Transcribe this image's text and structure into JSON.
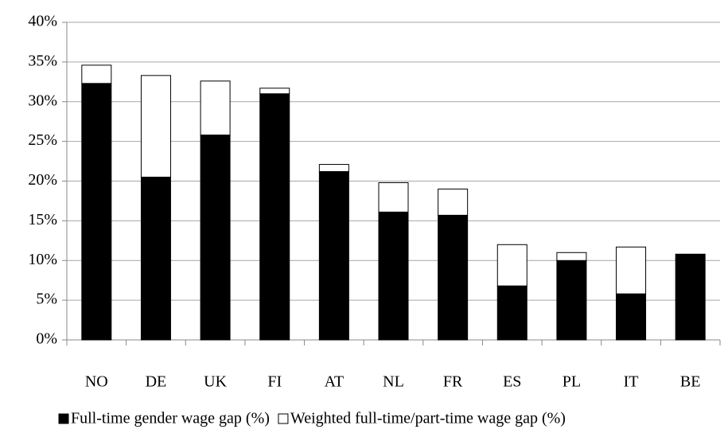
{
  "chart_data": {
    "type": "stacked_bar",
    "categories": [
      "NO",
      "DE",
      "UK",
      "FI",
      "AT",
      "NL",
      "FR",
      "ES",
      "PL",
      "IT",
      "BE"
    ],
    "series": [
      {
        "name": "Full-time gender wage gap (%)",
        "color": "#000000",
        "values": [
          32.3,
          20.5,
          25.8,
          31.0,
          21.2,
          16.1,
          15.7,
          6.8,
          10.0,
          5.8,
          10.8
        ]
      },
      {
        "name": "Weighted full-time/part-time wage gap (%)",
        "color": "#ffffff",
        "values": [
          2.3,
          12.8,
          6.8,
          0.7,
          0.9,
          3.7,
          3.3,
          5.2,
          1.0,
          5.9,
          0
        ]
      }
    ],
    "ylim": [
      0,
      40
    ],
    "yticks": [
      {
        "value": 0,
        "label": "0%"
      },
      {
        "value": 5,
        "label": "5%"
      },
      {
        "value": 10,
        "label": "10%"
      },
      {
        "value": 15,
        "label": "15%"
      },
      {
        "value": 20,
        "label": "20%"
      },
      {
        "value": 25,
        "label": "25%"
      },
      {
        "value": 30,
        "label": "30%"
      },
      {
        "value": 35,
        "label": "35%"
      },
      {
        "value": 40,
        "label": "40%"
      }
    ],
    "grid": true,
    "legend": "bottom"
  }
}
